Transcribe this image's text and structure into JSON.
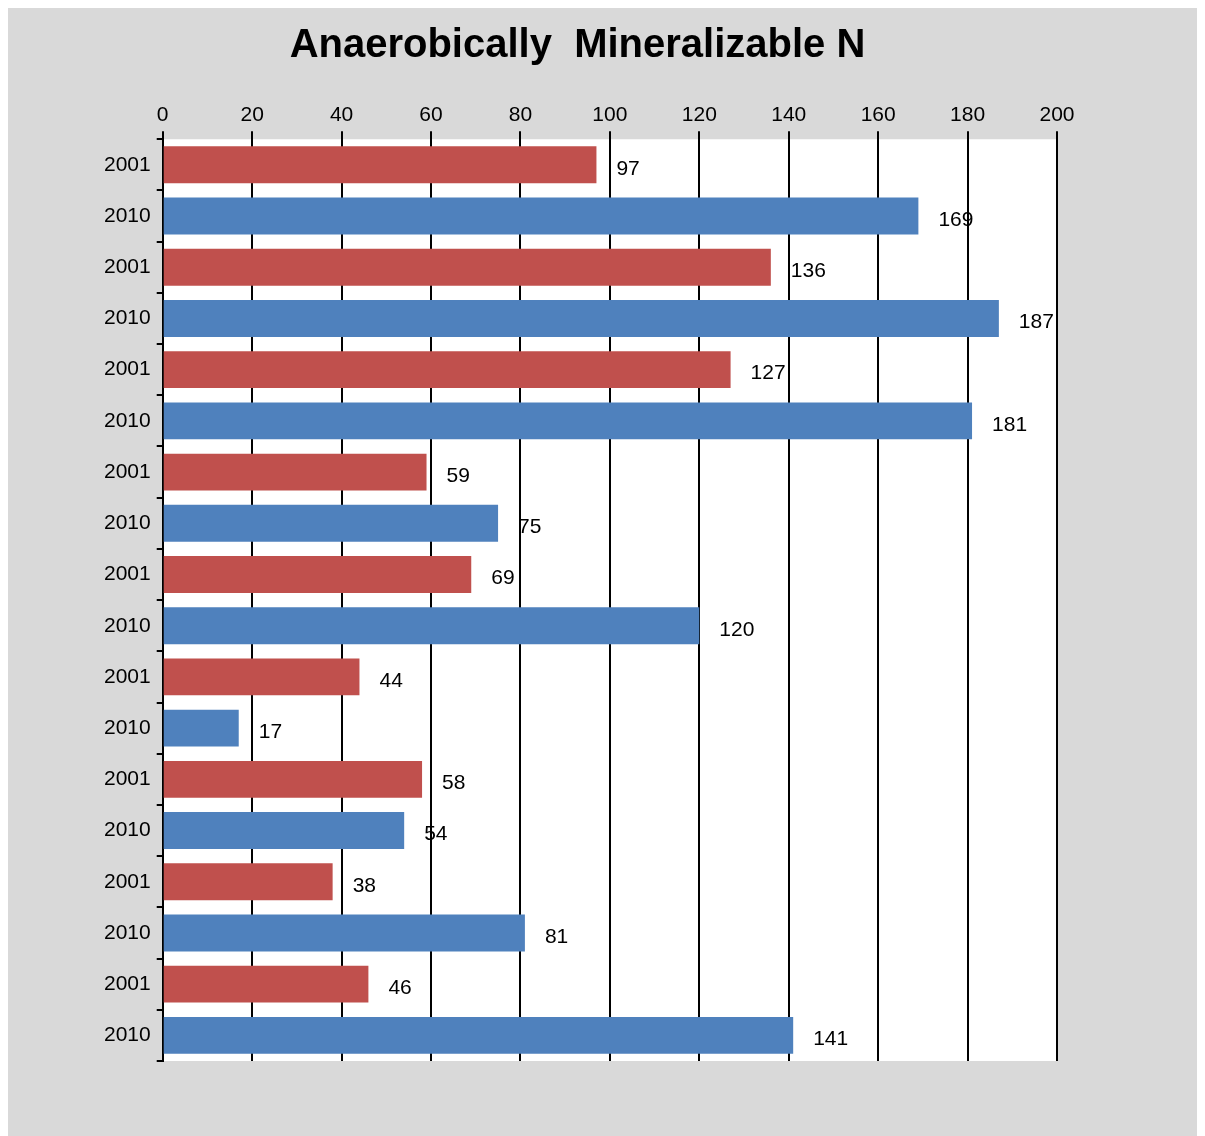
{
  "chart_data": {
    "type": "bar",
    "orientation": "horizontal",
    "title": "Anaerobically  Mineralizable N",
    "categories": [
      "2001",
      "2010",
      "2001",
      "2010",
      "2001",
      "2010",
      "2001",
      "2010",
      "2001",
      "2010",
      "2001",
      "2010",
      "2001",
      "2010",
      "2001",
      "2010",
      "2001",
      "2010"
    ],
    "values": [
      97,
      169,
      136,
      187,
      127,
      181,
      59,
      75,
      69,
      120,
      44,
      17,
      58,
      54,
      38,
      81,
      46,
      141
    ],
    "colors": [
      "#c0504d",
      "#4f81bd",
      "#c0504d",
      "#4f81bd",
      "#c0504d",
      "#4f81bd",
      "#c0504d",
      "#4f81bd",
      "#c0504d",
      "#4f81bd",
      "#c0504d",
      "#4f81bd",
      "#c0504d",
      "#4f81bd",
      "#c0504d",
      "#4f81bd",
      "#c0504d",
      "#4f81bd"
    ],
    "xlim": [
      0,
      200
    ],
    "xticks": [
      0,
      20,
      40,
      60,
      80,
      100,
      120,
      140,
      160,
      180,
      200
    ],
    "grid": "x",
    "data_labels": true,
    "legend": false
  }
}
